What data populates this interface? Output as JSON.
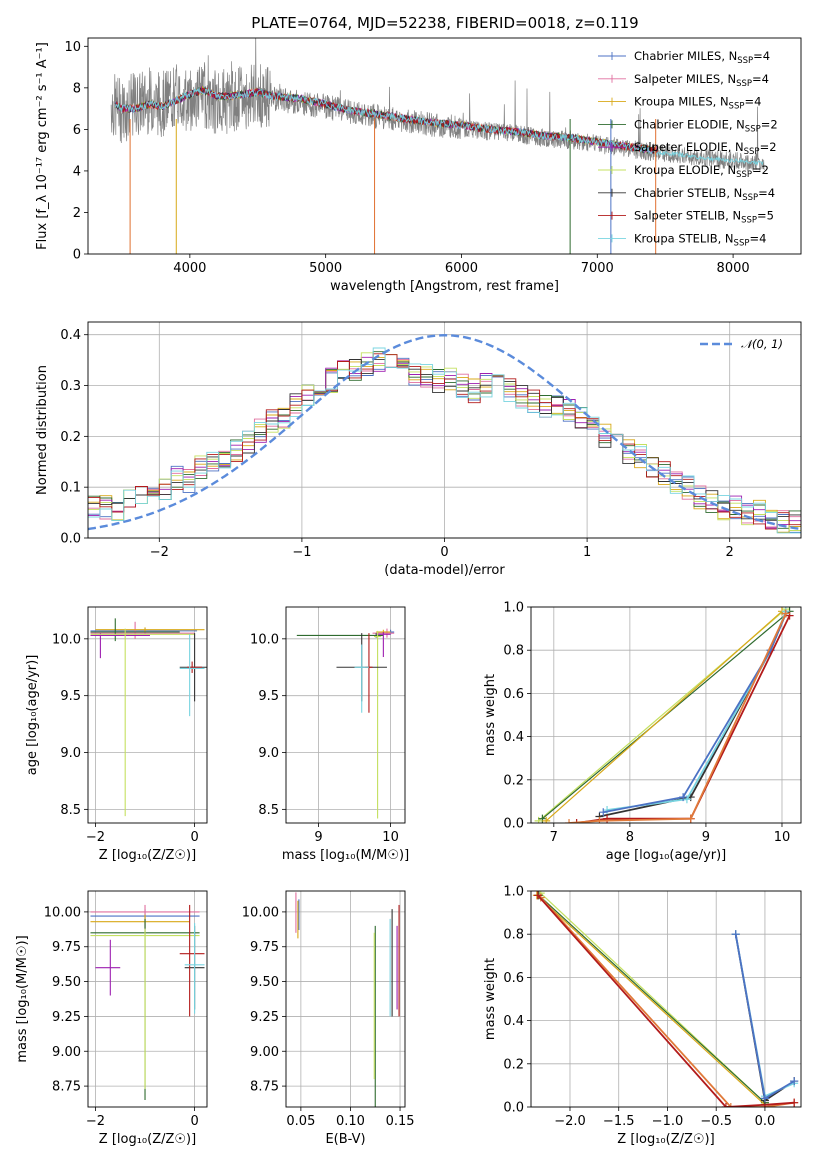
{
  "title": "PLATE=0764, MJD=52238, FIBERID=0018, z=0.119",
  "series_colors": [
    "#4c72c4",
    "#e06f9f",
    "#d8a818",
    "#2f6b2f",
    "#9d1fb0",
    "#c4e060",
    "#333333",
    "#b31b1b",
    "#78d4e0"
  ],
  "chart_data": [
    {
      "id": "spectrum",
      "type": "line",
      "xlabel": "wavelength [Angstrom, rest frame]",
      "ylabel": "Flux [f_λ 10⁻¹⁷ erg cm⁻² s⁻¹ A⁻¹]",
      "xlim": [
        3250,
        8500
      ],
      "ylim": [
        0,
        10.4
      ],
      "xticks": [
        4000,
        5000,
        6000,
        7000,
        8000
      ],
      "yticks": [
        0,
        2,
        4,
        6,
        8,
        10
      ],
      "grid": false,
      "legend_position": "top-right",
      "legend": [
        {
          "label": "Chabrier MILES, N",
          "sub": "SSP",
          "tail": "=4"
        },
        {
          "label": "Salpeter MILES, N",
          "sub": "SSP",
          "tail": "=4"
        },
        {
          "label": "Kroupa MILES, N",
          "sub": "SSP",
          "tail": "=4"
        },
        {
          "label": "Chabrier ELODIE, N",
          "sub": "SSP",
          "tail": "=2"
        },
        {
          "label": "Salpeter ELODIE, N",
          "sub": "SSP",
          "tail": "=2"
        },
        {
          "label": "Kroupa ELODIE, N",
          "sub": "SSP",
          "tail": "=2"
        },
        {
          "label": "Chabrier STELIB, N",
          "sub": "SSP",
          "tail": "=4"
        },
        {
          "label": "Salpeter STELIB, N",
          "sub": "SSP",
          "tail": "=5"
        },
        {
          "label": "Kroupa STELIB, N",
          "sub": "SSP",
          "tail": "=4"
        }
      ],
      "data_series": {
        "name": "data",
        "x": [
          3400,
          3500,
          3600,
          3700,
          3800,
          3900,
          4000,
          4100,
          4200,
          4300,
          4400,
          4500,
          4600,
          4800,
          5000,
          5200,
          5400,
          5600,
          5800,
          6000,
          6200,
          6400,
          6600,
          6800,
          7000,
          7200,
          7400,
          7600,
          7800,
          8000,
          8200
        ],
        "y": [
          7.3,
          6.9,
          7.2,
          7.4,
          7.2,
          7.6,
          7.4,
          7.7,
          7.3,
          7.4,
          7.5,
          7.6,
          7.5,
          7.3,
          7.1,
          6.8,
          6.6,
          6.4,
          6.2,
          6.1,
          5.9,
          5.8,
          5.6,
          5.5,
          5.3,
          5.1,
          4.9,
          4.8,
          4.6,
          4.5,
          4.4
        ]
      },
      "model_series": {
        "x": [
          3400,
          3500,
          3600,
          3700,
          3800,
          3900,
          4000,
          4100,
          4200,
          4300,
          4400,
          4500,
          4600,
          4800,
          5000,
          5200,
          5400,
          5600,
          5800,
          6000,
          6200,
          6400,
          6600,
          6800,
          7000,
          7200,
          7400
        ],
        "y": [
          7.4,
          7.0,
          7.0,
          7.2,
          7.1,
          7.4,
          7.7,
          7.9,
          7.6,
          7.6,
          7.7,
          7.8,
          7.6,
          7.5,
          7.2,
          6.9,
          6.7,
          6.5,
          6.3,
          6.2,
          6.0,
          5.9,
          5.7,
          5.6,
          5.4,
          5.2,
          5.0
        ]
      }
    },
    {
      "id": "residuals",
      "type": "step",
      "xlabel": "(data-model)/error",
      "ylabel": "Normed distribution",
      "xlim": [
        -2.5,
        2.5
      ],
      "ylim": [
        0,
        0.425
      ],
      "xticks": [
        -2,
        -1,
        0,
        1,
        2
      ],
      "yticks": [
        0.0,
        0.1,
        0.2,
        0.3,
        0.4
      ],
      "grid": true,
      "legend_position": "top-right",
      "legend_label": "𝒩(0, 1)",
      "bin_width": 0.1,
      "hist_base": [
        0.06,
        0.06,
        0.05,
        0.08,
        0.09,
        0.1,
        0.1,
        0.12,
        0.11,
        0.14,
        0.15,
        0.16,
        0.17,
        0.19,
        0.21,
        0.23,
        0.24,
        0.26,
        0.28,
        0.3,
        0.31,
        0.33,
        0.33,
        0.34,
        0.35,
        0.35,
        0.33,
        0.32,
        0.32,
        0.31,
        0.31,
        0.3,
        0.29,
        0.3,
        0.3,
        0.29,
        0.28,
        0.27,
        0.26,
        0.26,
        0.25,
        0.24,
        0.22,
        0.2,
        0.19,
        0.17,
        0.16,
        0.14,
        0.13,
        0.11,
        0.1,
        0.08,
        0.07,
        0.06,
        0.06,
        0.05,
        0.05,
        0.04,
        0.03,
        0.03
      ]
    },
    {
      "id": "age_vs_Z",
      "type": "errorbar",
      "xlabel": "Z [log₁₀(Z/Z☉)]",
      "ylabel": "age  [log₁₀(age/yr)]",
      "xlim": [
        -2.15,
        0.25
      ],
      "ylim": [
        8.38,
        10.28
      ],
      "xticks": [
        -2,
        0
      ],
      "yticks": [
        8.5,
        9.0,
        9.5,
        10.0
      ],
      "grid": true,
      "points": [
        {
          "s": 0,
          "x": -1.0,
          "xerr": [
            1.1,
            1.05
          ],
          "y": 10.07,
          "yerr": [
            0.03,
            0.03
          ]
        },
        {
          "s": 1,
          "x": -1.2,
          "xerr": [
            0.9,
            1.2
          ],
          "y": 10.05,
          "yerr": [
            0.05,
            0.1
          ]
        },
        {
          "s": 2,
          "x": -1.0,
          "xerr": [
            1.0,
            1.2
          ],
          "y": 10.08,
          "yerr": [
            0.02,
            0.02
          ]
        },
        {
          "s": 3,
          "x": -1.6,
          "xerr": [
            0.5,
            1.3
          ],
          "y": 10.06,
          "yerr": [
            0.08,
            0.12
          ]
        },
        {
          "s": 4,
          "x": -1.9,
          "xerr": [
            0.2,
            1.0
          ],
          "y": 10.03,
          "yerr": [
            0.2,
            0.02
          ]
        },
        {
          "s": 5,
          "x": -1.4,
          "xerr": [
            0.7,
            1.4
          ],
          "y": 10.04,
          "yerr": [
            1.6,
            0.05
          ]
        },
        {
          "s": 6,
          "x": 0.0,
          "xerr": [
            0.3,
            0.3
          ],
          "y": 9.75,
          "yerr": [
            0.3,
            0.3
          ]
        },
        {
          "s": 7,
          "x": -0.05,
          "xerr": [
            0.1,
            0.2
          ],
          "y": 9.75,
          "yerr": [
            0.05,
            0.05
          ]
        },
        {
          "s": 8,
          "x": -0.1,
          "xerr": [
            0.2,
            0.3
          ],
          "y": 9.74,
          "yerr": [
            0.42,
            0.3
          ]
        }
      ]
    },
    {
      "id": "age_vs_mass",
      "type": "errorbar",
      "xlabel": "mass [log₁₀(M/M☉)]",
      "ylabel": "",
      "xlim": [
        8.55,
        10.2
      ],
      "ylim": [
        8.38,
        10.28
      ],
      "xticks": [
        9,
        10
      ],
      "yticks": [
        8.5,
        9.0,
        9.5,
        10.0
      ],
      "grid": true,
      "points": [
        {
          "s": 0,
          "x": 10.0,
          "xerr": [
            0.1,
            0.05
          ],
          "y": 10.06,
          "yerr": [
            0.02,
            0.02
          ]
        },
        {
          "s": 1,
          "x": 9.95,
          "xerr": [
            0.2,
            0.1
          ],
          "y": 10.05,
          "yerr": [
            0.04,
            0.04
          ]
        },
        {
          "s": 2,
          "x": 9.9,
          "xerr": [
            0.1,
            0.1
          ],
          "y": 10.06,
          "yerr": [
            0.02,
            0.02
          ]
        },
        {
          "s": 3,
          "x": 9.8,
          "xerr": [
            1.1,
            0.1
          ],
          "y": 10.03,
          "yerr": [
            0.02,
            0.02
          ]
        },
        {
          "s": 4,
          "x": 9.9,
          "xerr": [
            0.1,
            0.1
          ],
          "y": 10.04,
          "yerr": [
            0.2,
            0.02
          ]
        },
        {
          "s": 5,
          "x": 9.82,
          "xerr": [
            0.05,
            0.05
          ],
          "y": 10.02,
          "yerr": [
            1.6,
            0.05
          ]
        },
        {
          "s": 6,
          "x": 9.6,
          "xerr": [
            0.35,
            0.35
          ],
          "y": 9.75,
          "yerr": [
            0.3,
            0.3
          ]
        },
        {
          "s": 7,
          "x": 9.7,
          "xerr": [
            0.05,
            0.05
          ],
          "y": 9.75,
          "yerr": [
            0.4,
            0.3
          ]
        },
        {
          "s": 8,
          "x": 9.6,
          "xerr": [
            0.1,
            0.1
          ],
          "y": 9.75,
          "yerr": [
            0.4,
            0.2
          ]
        }
      ]
    },
    {
      "id": "weight_vs_age",
      "type": "line",
      "xlabel": "age  [log₁₀(age/yr)]",
      "ylabel": "mass weight",
      "xlim": [
        6.7,
        10.25
      ],
      "ylim": [
        0,
        1.0
      ],
      "xticks": [
        7,
        8,
        9,
        10
      ],
      "yticks": [
        0.0,
        0.2,
        0.4,
        0.6,
        0.8,
        1.0
      ],
      "grid": true,
      "lines": [
        {
          "s": 5,
          "x": [
            6.8,
            10.05
          ],
          "y": [
            0.01,
            0.99
          ]
        },
        {
          "s": 3,
          "x": [
            6.85,
            10.1
          ],
          "y": [
            0.02,
            0.98
          ]
        },
        {
          "s": 2,
          "x": [
            6.9,
            10.0
          ],
          "y": [
            0.01,
            0.98
          ]
        },
        {
          "s": 6,
          "x": [
            7.6,
            8.8,
            9.85,
            10.05
          ],
          "y": [
            0.03,
            0.12,
            0.8,
            0.97
          ]
        },
        {
          "s": 8,
          "x": [
            7.7,
            8.75,
            9.85,
            10.05
          ],
          "y": [
            0.06,
            0.11,
            0.8,
            0.98
          ]
        },
        {
          "s": 0,
          "x": [
            7.65,
            8.7,
            9.85,
            10.05
          ],
          "y": [
            0.05,
            0.12,
            0.8,
            0.97
          ]
        },
        {
          "s": 7,
          "x": [
            7.3,
            7.7,
            8.8,
            10.1
          ],
          "y": [
            0.0,
            0.02,
            0.02,
            0.96
          ]
        },
        {
          "s": 1,
          "x": [
            7.2,
            7.6,
            8.8,
            10.05
          ],
          "y": [
            0.0,
            0.01,
            0.02,
            0.97
          ]
        }
      ]
    },
    {
      "id": "mass_vs_Z",
      "type": "errorbar",
      "xlabel": "Z [log₁₀(Z/Z☉)]",
      "ylabel": "mass [log₁₀(M/M☉)]",
      "xlim": [
        -2.15,
        0.25
      ],
      "ylim": [
        8.6,
        10.15
      ],
      "xticks": [
        -2,
        0
      ],
      "yticks": [
        8.75,
        9.0,
        9.25,
        9.5,
        9.75,
        10.0
      ],
      "grid": true,
      "points": [
        {
          "s": 0,
          "x": -1.0,
          "xerr": [
            1.1,
            1.1
          ],
          "y": 9.97,
          "yerr": [
            0.1,
            0.05
          ]
        },
        {
          "s": 1,
          "x": -1.0,
          "xerr": [
            1.1,
            1.1
          ],
          "y": 10.0,
          "yerr": [
            0.15,
            0.05
          ]
        },
        {
          "s": 2,
          "x": -1.0,
          "xerr": [
            1.1,
            0.9
          ],
          "y": 9.93,
          "yerr": [
            0.05,
            0.05
          ]
        },
        {
          "s": 3,
          "x": -1.0,
          "xerr": [
            1.1,
            1.1
          ],
          "y": 9.85,
          "yerr": [
            1.2,
            0.1
          ]
        },
        {
          "s": 4,
          "x": -1.7,
          "xerr": [
            0.3,
            0.2
          ],
          "y": 9.6,
          "yerr": [
            0.2,
            0.2
          ]
        },
        {
          "s": 5,
          "x": -1.0,
          "xerr": [
            1.1,
            1.1
          ],
          "y": 9.83,
          "yerr": [
            1.1,
            0.05
          ]
        },
        {
          "s": 6,
          "x": 0.0,
          "xerr": [
            0.2,
            0.2
          ],
          "y": 9.6,
          "yerr": [
            0.3,
            0.3
          ]
        },
        {
          "s": 7,
          "x": -0.1,
          "xerr": [
            0.2,
            0.3
          ],
          "y": 9.7,
          "yerr": [
            0.45,
            0.35
          ]
        },
        {
          "s": 8,
          "x": 0.0,
          "xerr": [
            0.2,
            0.2
          ],
          "y": 9.62,
          "yerr": [
            0.35,
            0.3
          ]
        }
      ]
    },
    {
      "id": "mass_vs_ebv",
      "type": "errorbar",
      "xlabel": "E(B-V)",
      "ylabel": "",
      "xlim": [
        0.035,
        0.155
      ],
      "ylim": [
        8.6,
        10.15
      ],
      "xticks": [
        0.05,
        0.1,
        0.15
      ],
      "yticks": [
        8.75,
        9.0,
        9.25,
        9.5,
        9.75,
        10.0
      ],
      "grid": true,
      "points": [
        {
          "s": 0,
          "x": 0.048,
          "y": 9.97,
          "yerr": [
            0.1,
            0.12
          ]
        },
        {
          "s": 1,
          "x": 0.045,
          "y": 10.0,
          "yerr": [
            0.15,
            0.14
          ]
        },
        {
          "s": 2,
          "x": 0.047,
          "y": 9.93,
          "yerr": [
            0.12,
            0.15
          ]
        },
        {
          "s": 3,
          "x": 0.125,
          "y": 9.25,
          "yerr": [
            0.65,
            0.65
          ]
        },
        {
          "s": 4,
          "x": 0.147,
          "y": 9.6,
          "yerr": [
            0.3,
            0.3
          ]
        },
        {
          "s": 5,
          "x": 0.124,
          "y": 9.4,
          "yerr": [
            0.6,
            0.45
          ]
        },
        {
          "s": 6,
          "x": 0.142,
          "y": 9.65,
          "yerr": [
            0.4,
            0.37
          ]
        },
        {
          "s": 7,
          "x": 0.149,
          "y": 9.65,
          "yerr": [
            0.4,
            0.4
          ]
        },
        {
          "s": 8,
          "x": 0.14,
          "y": 9.6,
          "yerr": [
            0.35,
            0.35
          ]
        }
      ]
    },
    {
      "id": "weight_vs_Z",
      "type": "line",
      "xlabel": "Z [log₁₀(Z/Z☉)]",
      "ylabel": "mass weight",
      "xlim": [
        -2.4,
        0.37
      ],
      "ylim": [
        0,
        1.0
      ],
      "xticks": [
        -2.0,
        -1.5,
        -1.0,
        -0.5,
        0.0
      ],
      "yticks": [
        0.0,
        0.2,
        0.4,
        0.6,
        0.8,
        1.0
      ],
      "grid": true,
      "lines": [
        {
          "s": 5,
          "x": [
            -2.3,
            0.0
          ],
          "y": [
            0.99,
            0.02
          ]
        },
        {
          "s": 3,
          "x": [
            -2.32,
            0.0
          ],
          "y": [
            0.98,
            0.02
          ]
        },
        {
          "s": 2,
          "x": [
            -2.34,
            0.0
          ],
          "y": [
            0.98,
            0.01
          ]
        },
        {
          "s": 1,
          "x": [
            -2.3,
            -0.35,
            0.0,
            0.3
          ],
          "y": [
            0.97,
            0.0,
            0.0,
            0.02
          ]
        },
        {
          "s": 7,
          "x": [
            -2.33,
            -0.4,
            0.0,
            0.3
          ],
          "y": [
            0.98,
            0.0,
            0.01,
            0.02
          ]
        },
        {
          "s": 6,
          "x": [
            -0.3,
            0.0,
            0.3
          ],
          "y": [
            0.8,
            0.03,
            0.12
          ]
        },
        {
          "s": 8,
          "x": [
            -0.3,
            0.0,
            0.3
          ],
          "y": [
            0.8,
            0.05,
            0.11
          ]
        },
        {
          "s": 0,
          "x": [
            -0.3,
            0.0,
            0.3
          ],
          "y": [
            0.8,
            0.04,
            0.12
          ]
        }
      ]
    }
  ]
}
